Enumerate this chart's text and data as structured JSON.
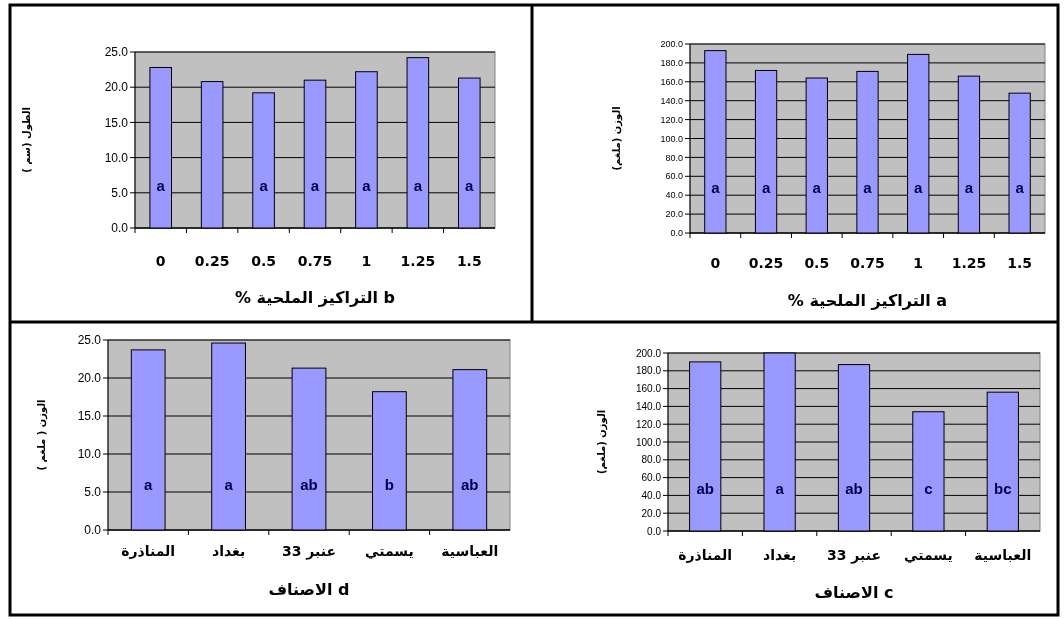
{
  "chart_data": [
    {
      "type": "bar",
      "xlabel": "a التراكيز الملحية %",
      "ylabel": "الوزن (ملغم)",
      "categories": [
        "0",
        "0.25",
        "0.5",
        "0.75",
        "1",
        "1.25",
        "1.5"
      ],
      "values": [
        193,
        172,
        164,
        171,
        189,
        166,
        148
      ],
      "value_labels": [
        "a",
        "a",
        "a",
        "a",
        "a",
        "a",
        "a"
      ],
      "color": "#9999ff",
      "ylim": [
        0,
        200
      ],
      "yticks": [
        {
          "value": 0,
          "label": "0.0"
        },
        {
          "value": 20,
          "label": "20.0"
        },
        {
          "value": 40,
          "label": "40.0"
        },
        {
          "value": 60,
          "label": "60.0"
        },
        {
          "value": 80,
          "label": "80.0"
        },
        {
          "value": 100,
          "label": "100.0"
        },
        {
          "value": 120,
          "label": "120.0"
        },
        {
          "value": 140,
          "label": "140.0"
        },
        {
          "value": 160,
          "label": "160.0"
        },
        {
          "value": 180,
          "label": "180.0"
        },
        {
          "value": 200,
          "label": "200.0"
        }
      ],
      "grid": "y"
    },
    {
      "type": "bar",
      "xlabel": "b التراكيز الملحية %",
      "ylabel": "الطول (سم )",
      "categories": [
        "0",
        "0.25",
        "0.5",
        "0.75",
        "1",
        "1.25",
        "1.5"
      ],
      "values": [
        22.8,
        20.8,
        19.2,
        21.0,
        22.2,
        24.2,
        21.3
      ],
      "value_labels": [
        "a",
        null,
        "a",
        "a",
        "a",
        "a",
        "a"
      ],
      "color": "#9999ff",
      "ylim": [
        0,
        25
      ],
      "yticks": [
        {
          "value": 0,
          "label": "0.0"
        },
        {
          "value": 5,
          "label": "5.0"
        },
        {
          "value": 10,
          "label": "10.0"
        },
        {
          "value": 15,
          "label": "15.0"
        },
        {
          "value": 20,
          "label": "20.0"
        },
        {
          "value": 25,
          "label": "25.0"
        }
      ],
      "grid": "y"
    },
    {
      "type": "bar",
      "xlabel": "c الاصناف",
      "ylabel": "الوزن (ملغم)",
      "categories": [
        "المناذرة",
        "بغداد",
        "عنبر 33",
        "يسمتي",
        "العباسية"
      ],
      "values": [
        190,
        200,
        187,
        134,
        156
      ],
      "value_labels": [
        "ab",
        "a",
        "ab",
        "c",
        "bc"
      ],
      "color": "#9999ff",
      "ylim": [
        0,
        200
      ],
      "yticks": [
        {
          "value": 0,
          "label": "0.0"
        },
        {
          "value": 20,
          "label": "20.0"
        },
        {
          "value": 40,
          "label": "40.0"
        },
        {
          "value": 60,
          "label": "60.0"
        },
        {
          "value": 80,
          "label": "80.0"
        },
        {
          "value": 100,
          "label": "100.0"
        },
        {
          "value": 120,
          "label": "120.0"
        },
        {
          "value": 140,
          "label": "140.0"
        },
        {
          "value": 160,
          "label": "160.0"
        },
        {
          "value": 180,
          "label": "180.0"
        },
        {
          "value": 200,
          "label": "200.0"
        }
      ],
      "grid": "y"
    },
    {
      "type": "bar",
      "xlabel": "d الاصناف",
      "ylabel": "الوزن ( ملغم )",
      "categories": [
        "المناذرة",
        "بغداد",
        "عنبر 33",
        "يسمتي",
        "العباسية"
      ],
      "values": [
        23.7,
        24.6,
        21.3,
        18.2,
        21.1
      ],
      "value_labels": [
        "a",
        "a",
        "ab",
        "b",
        "ab"
      ],
      "color": "#9999ff",
      "ylim": [
        0,
        25
      ],
      "yticks": [
        {
          "value": 0,
          "label": "0.0"
        },
        {
          "value": 5,
          "label": "5.0"
        },
        {
          "value": 10,
          "label": "10.0"
        },
        {
          "value": 15,
          "label": "15.0"
        },
        {
          "value": 20,
          "label": "20.0"
        },
        {
          "value": 25,
          "label": "25.0"
        }
      ],
      "grid": "y"
    }
  ]
}
